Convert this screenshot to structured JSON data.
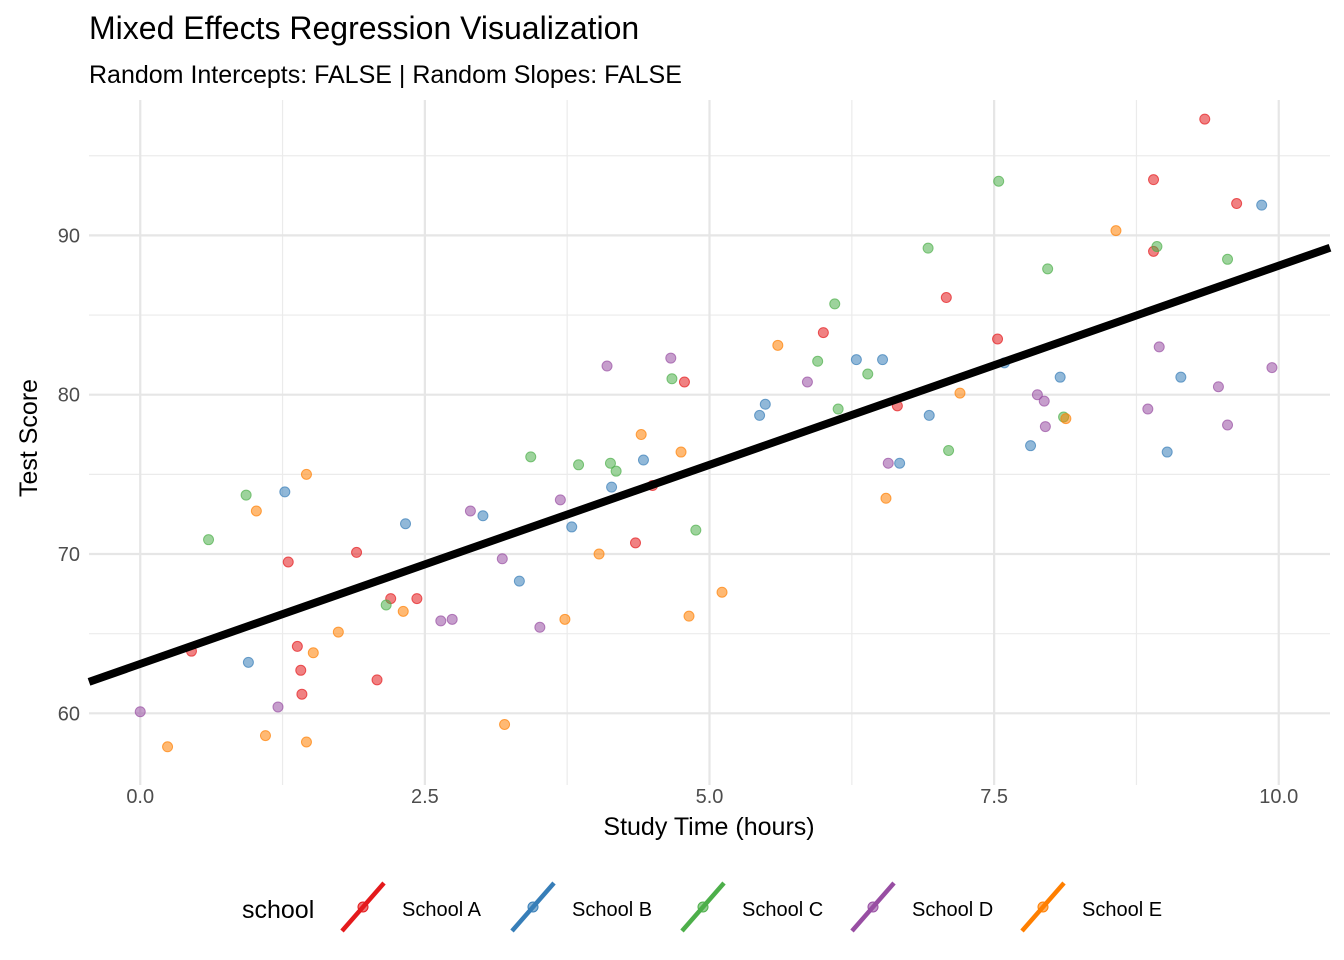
{
  "chart_data": {
    "type": "scatter",
    "title": "Mixed Effects Regression Visualization",
    "subtitle": "Random Intercepts: FALSE | Random Slopes: FALSE",
    "xlabel": "Study Time (hours)",
    "ylabel": "Test Score",
    "xlim": [
      -0.45,
      10.45
    ],
    "ylim": [
      55.5,
      98.5
    ],
    "x_ticks": [
      0,
      2.5,
      5,
      7.5,
      10
    ],
    "x_tick_labels": [
      "0.0",
      "2.5",
      "5.0",
      "7.5",
      "10.0"
    ],
    "y_ticks": [
      60,
      70,
      80,
      90
    ],
    "y_tick_labels": [
      "60",
      "70",
      "80",
      "90"
    ],
    "grid": true,
    "legend": {
      "title": "school",
      "position": "bottom"
    },
    "fit_line": {
      "intercept": 63.1,
      "slope": 2.5,
      "color": "#000000"
    },
    "series": [
      {
        "name": "School A",
        "color": "#E41A1C",
        "points": [
          [
            0.45,
            63.9
          ],
          [
            1.3,
            69.5
          ],
          [
            1.38,
            64.2
          ],
          [
            1.41,
            62.7
          ],
          [
            1.42,
            61.2
          ],
          [
            1.9,
            70.1
          ],
          [
            2.08,
            62.1
          ],
          [
            2.2,
            67.2
          ],
          [
            2.43,
            67.2
          ],
          [
            4.35,
            70.7
          ],
          [
            4.5,
            74.3
          ],
          [
            4.78,
            80.8
          ],
          [
            6.0,
            83.9
          ],
          [
            6.65,
            79.3
          ],
          [
            7.08,
            86.1
          ],
          [
            7.53,
            83.5
          ],
          [
            8.9,
            89.0
          ],
          [
            8.9,
            93.5
          ],
          [
            9.35,
            97.3
          ],
          [
            9.63,
            92.0
          ]
        ]
      },
      {
        "name": "School B",
        "color": "#377EB8",
        "points": [
          [
            0.95,
            63.2
          ],
          [
            1.27,
            73.9
          ],
          [
            2.33,
            71.9
          ],
          [
            3.01,
            72.4
          ],
          [
            3.33,
            68.3
          ],
          [
            3.79,
            71.7
          ],
          [
            4.14,
            74.2
          ],
          [
            4.42,
            75.9
          ],
          [
            5.44,
            78.7
          ],
          [
            5.49,
            79.4
          ],
          [
            6.29,
            82.2
          ],
          [
            6.52,
            82.2
          ],
          [
            6.67,
            75.7
          ],
          [
            6.93,
            78.7
          ],
          [
            7.59,
            82.0
          ],
          [
            7.82,
            76.8
          ],
          [
            8.08,
            81.1
          ],
          [
            9.02,
            76.4
          ],
          [
            9.14,
            81.1
          ],
          [
            9.85,
            91.9
          ]
        ]
      },
      {
        "name": "School C",
        "color": "#4DAF4A",
        "points": [
          [
            0.6,
            70.9
          ],
          [
            0.93,
            73.7
          ],
          [
            2.16,
            66.8
          ],
          [
            3.43,
            76.1
          ],
          [
            3.85,
            75.6
          ],
          [
            4.13,
            75.7
          ],
          [
            4.18,
            75.2
          ],
          [
            4.67,
            81.0
          ],
          [
            4.88,
            71.5
          ],
          [
            5.95,
            82.1
          ],
          [
            6.1,
            85.7
          ],
          [
            6.13,
            79.1
          ],
          [
            6.39,
            81.3
          ],
          [
            6.92,
            89.2
          ],
          [
            7.1,
            76.5
          ],
          [
            7.54,
            93.4
          ],
          [
            7.97,
            87.9
          ],
          [
            8.11,
            78.6
          ],
          [
            8.93,
            89.3
          ],
          [
            9.55,
            88.5
          ]
        ]
      },
      {
        "name": "School D",
        "color": "#984EA3",
        "points": [
          [
            0.0,
            60.1
          ],
          [
            1.21,
            60.4
          ],
          [
            2.64,
            65.8
          ],
          [
            2.74,
            65.9
          ],
          [
            2.9,
            72.7
          ],
          [
            3.18,
            69.7
          ],
          [
            3.51,
            65.4
          ],
          [
            3.69,
            73.4
          ],
          [
            4.1,
            81.8
          ],
          [
            4.66,
            82.3
          ],
          [
            5.86,
            80.8
          ],
          [
            6.57,
            75.7
          ],
          [
            7.88,
            80.0
          ],
          [
            7.94,
            79.6
          ],
          [
            7.95,
            78.0
          ],
          [
            8.85,
            79.1
          ],
          [
            8.95,
            83.0
          ],
          [
            9.47,
            80.5
          ],
          [
            9.55,
            78.1
          ],
          [
            9.94,
            81.7
          ]
        ]
      },
      {
        "name": "School E",
        "color": "#FF7F00",
        "points": [
          [
            0.24,
            57.9
          ],
          [
            1.02,
            72.7
          ],
          [
            1.1,
            58.6
          ],
          [
            1.46,
            75.0
          ],
          [
            1.46,
            58.2
          ],
          [
            1.52,
            63.8
          ],
          [
            1.74,
            65.1
          ],
          [
            2.31,
            66.4
          ],
          [
            3.2,
            59.3
          ],
          [
            3.73,
            65.9
          ],
          [
            4.03,
            70.0
          ],
          [
            4.4,
            77.5
          ],
          [
            4.75,
            76.4
          ],
          [
            4.82,
            66.1
          ],
          [
            5.11,
            67.6
          ],
          [
            5.6,
            83.1
          ],
          [
            6.55,
            73.5
          ],
          [
            7.2,
            80.1
          ],
          [
            8.13,
            78.5
          ],
          [
            8.57,
            90.3
          ]
        ]
      }
    ]
  }
}
